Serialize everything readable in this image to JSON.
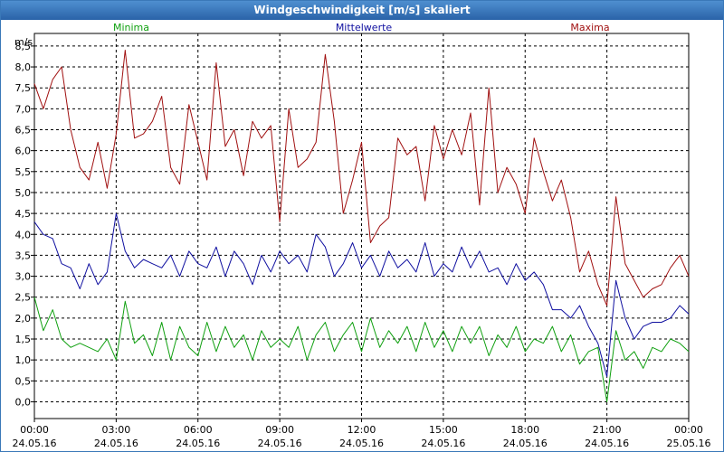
{
  "chart_data": {
    "type": "line",
    "title": "Windgeschwindigkeit [m/s] skaliert",
    "ylabel": "m/s",
    "ylim": [
      -0.4,
      8.8
    ],
    "yticks": [
      "0,0",
      "0,5",
      "1,0",
      "1,5",
      "2,0",
      "2,5",
      "3,0",
      "3,5",
      "4,0",
      "4,5",
      "5,0",
      "5,5",
      "6,0",
      "6,5",
      "7,0",
      "7,5",
      "8,0",
      "8,5"
    ],
    "ytick_values": [
      0,
      0.5,
      1,
      1.5,
      2,
      2.5,
      3,
      3.5,
      4,
      4.5,
      5,
      5.5,
      6,
      6.5,
      7,
      7.5,
      8,
      8.5
    ],
    "xlim": [
      0,
      24
    ],
    "xticks": [
      {
        "hour": 0,
        "time": "00:00",
        "date": "24.05.16"
      },
      {
        "hour": 3,
        "time": "03:00",
        "date": "24.05.16"
      },
      {
        "hour": 6,
        "time": "06:00",
        "date": "24.05.16"
      },
      {
        "hour": 9,
        "time": "09:00",
        "date": "24.05.16"
      },
      {
        "hour": 12,
        "time": "12:00",
        "date": "24.05.16"
      },
      {
        "hour": 15,
        "time": "15:00",
        "date": "24.05.16"
      },
      {
        "hour": 18,
        "time": "18:00",
        "date": "24.05.16"
      },
      {
        "hour": 21,
        "time": "21:00",
        "date": "24.05.16"
      },
      {
        "hour": 24,
        "time": "00:00",
        "date": "25.05.16"
      }
    ],
    "grid": true,
    "series": [
      {
        "name": "Minima",
        "color": "#10a010",
        "legend_pos": "left",
        "x": [
          0,
          0.33,
          0.67,
          1,
          1.33,
          1.67,
          2,
          2.33,
          2.67,
          3,
          3.33,
          3.67,
          4,
          4.33,
          4.67,
          5,
          5.33,
          5.67,
          6,
          6.33,
          6.67,
          7,
          7.33,
          7.67,
          8,
          8.33,
          8.67,
          9,
          9.33,
          9.67,
          10,
          10.33,
          10.67,
          11,
          11.33,
          11.67,
          12,
          12.33,
          12.67,
          13,
          13.33,
          13.67,
          14,
          14.33,
          14.67,
          15,
          15.33,
          15.67,
          16,
          16.33,
          16.67,
          17,
          17.33,
          17.67,
          18,
          18.33,
          18.67,
          19,
          19.33,
          19.67,
          20,
          20.33,
          20.67,
          21,
          21.33,
          21.67,
          22,
          22.33,
          22.67,
          23,
          23.33,
          23.67,
          24
        ],
        "values": [
          2.5,
          1.7,
          2.2,
          1.5,
          1.3,
          1.4,
          1.3,
          1.2,
          1.5,
          1.0,
          2.4,
          1.4,
          1.6,
          1.1,
          1.9,
          1.0,
          1.8,
          1.3,
          1.1,
          1.9,
          1.2,
          1.8,
          1.3,
          1.6,
          1.0,
          1.7,
          1.3,
          1.5,
          1.3,
          1.8,
          1.0,
          1.6,
          1.9,
          1.2,
          1.6,
          1.9,
          1.2,
          2.0,
          1.3,
          1.7,
          1.4,
          1.8,
          1.2,
          1.9,
          1.3,
          1.7,
          1.2,
          1.8,
          1.4,
          1.8,
          1.1,
          1.6,
          1.3,
          1.8,
          1.2,
          1.5,
          1.4,
          1.8,
          1.2,
          1.6,
          0.9,
          1.2,
          1.3,
          0.0,
          1.7,
          1.0,
          1.2,
          0.8,
          1.3,
          1.2,
          1.5,
          1.4,
          1.2
        ]
      },
      {
        "name": "Mittelwerte",
        "color": "#1010a0",
        "legend_pos": "center",
        "x": [
          0,
          0.33,
          0.67,
          1,
          1.33,
          1.67,
          2,
          2.33,
          2.67,
          3,
          3.33,
          3.67,
          4,
          4.33,
          4.67,
          5,
          5.33,
          5.67,
          6,
          6.33,
          6.67,
          7,
          7.33,
          7.67,
          8,
          8.33,
          8.67,
          9,
          9.33,
          9.67,
          10,
          10.33,
          10.67,
          11,
          11.33,
          11.67,
          12,
          12.33,
          12.67,
          13,
          13.33,
          13.67,
          14,
          14.33,
          14.67,
          15,
          15.33,
          15.67,
          16,
          16.33,
          16.67,
          17,
          17.33,
          17.67,
          18,
          18.33,
          18.67,
          19,
          19.33,
          19.67,
          20,
          20.33,
          20.67,
          21,
          21.33,
          21.67,
          22,
          22.33,
          22.67,
          23,
          23.33,
          23.67,
          24
        ],
        "values": [
          4.3,
          4.0,
          3.9,
          3.3,
          3.2,
          2.7,
          3.3,
          2.8,
          3.1,
          4.5,
          3.6,
          3.2,
          3.4,
          3.3,
          3.2,
          3.5,
          3.0,
          3.6,
          3.3,
          3.2,
          3.7,
          3.0,
          3.6,
          3.3,
          2.8,
          3.5,
          3.1,
          3.6,
          3.3,
          3.5,
          3.1,
          4.0,
          3.7,
          3.0,
          3.3,
          3.8,
          3.2,
          3.5,
          3.0,
          3.6,
          3.2,
          3.4,
          3.1,
          3.8,
          3.0,
          3.3,
          3.1,
          3.7,
          3.2,
          3.6,
          3.1,
          3.2,
          2.8,
          3.3,
          2.9,
          3.1,
          2.8,
          2.2,
          2.2,
          2.0,
          2.3,
          1.8,
          1.4,
          0.6,
          2.9,
          2.0,
          1.5,
          1.8,
          1.9,
          1.9,
          2.0,
          2.3,
          2.1
        ]
      },
      {
        "name": "Maxima",
        "color": "#a01010",
        "legend_pos": "right",
        "x": [
          0,
          0.33,
          0.67,
          1,
          1.33,
          1.67,
          2,
          2.33,
          2.67,
          3,
          3.33,
          3.67,
          4,
          4.33,
          4.67,
          5,
          5.33,
          5.67,
          6,
          6.33,
          6.67,
          7,
          7.33,
          7.67,
          8,
          8.33,
          8.67,
          9,
          9.33,
          9.67,
          10,
          10.33,
          10.67,
          11,
          11.33,
          11.67,
          12,
          12.33,
          12.67,
          13,
          13.33,
          13.67,
          14,
          14.33,
          14.67,
          15,
          15.33,
          15.67,
          16,
          16.33,
          16.67,
          17,
          17.33,
          17.67,
          18,
          18.33,
          18.67,
          19,
          19.33,
          19.67,
          20,
          20.33,
          20.67,
          21,
          21.33,
          21.67,
          22,
          22.33,
          22.67,
          23,
          23.33,
          23.67,
          24
        ],
        "values": [
          7.6,
          7.0,
          7.7,
          8.0,
          6.5,
          5.6,
          5.3,
          6.2,
          5.1,
          6.4,
          8.4,
          6.3,
          6.4,
          6.7,
          7.3,
          5.6,
          5.2,
          7.1,
          6.2,
          5.3,
          8.1,
          6.1,
          6.5,
          5.4,
          6.7,
          6.3,
          6.6,
          4.3,
          7.0,
          5.6,
          5.8,
          6.2,
          8.3,
          6.7,
          4.5,
          5.3,
          6.2,
          3.8,
          4.2,
          4.4,
          6.3,
          5.9,
          6.1,
          4.8,
          6.6,
          5.8,
          6.5,
          5.9,
          6.9,
          4.7,
          7.5,
          5.0,
          5.6,
          5.2,
          4.5,
          6.3,
          5.5,
          4.8,
          5.3,
          4.4,
          3.1,
          3.6,
          2.8,
          2.3,
          4.9,
          3.3,
          2.9,
          2.5,
          2.7,
          2.8,
          3.2,
          3.5,
          3.0
        ]
      }
    ]
  }
}
